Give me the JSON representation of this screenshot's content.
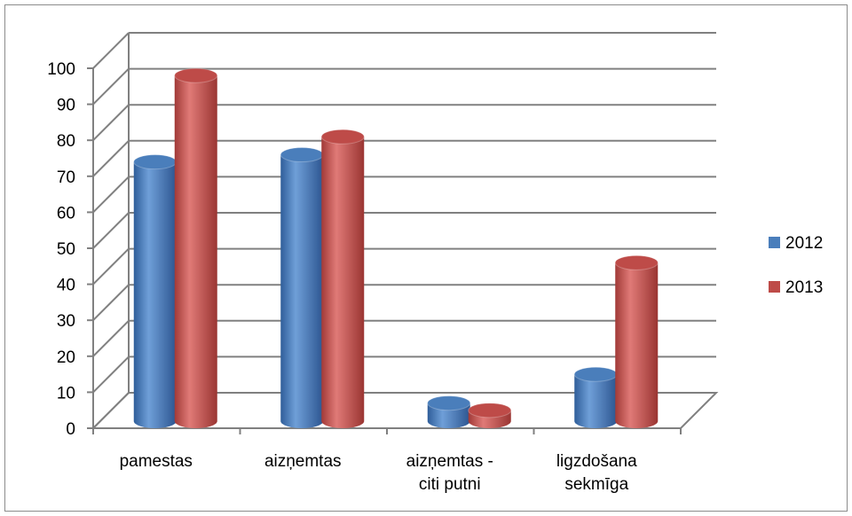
{
  "chart_data": {
    "type": "bar",
    "style": "3d-cylinder",
    "categories": [
      [
        "pamestas"
      ],
      [
        "aizņemtas"
      ],
      [
        "aizņemtas -",
        "citi putni"
      ],
      [
        "ligzdošana",
        "sekmīga"
      ]
    ],
    "series": [
      {
        "name": "2012",
        "values": [
          72,
          74,
          5,
          13
        ],
        "color": "#4a7ebb"
      },
      {
        "name": "2013",
        "values": [
          96,
          79,
          3,
          44
        ],
        "color": "#be4b48"
      }
    ],
    "y_ticks": [
      "0",
      "10",
      "20",
      "30",
      "40",
      "50",
      "60",
      "70",
      "80",
      "90",
      "100"
    ],
    "ylim": [
      0,
      100
    ],
    "grid": true,
    "legend_position": "right",
    "title": "",
    "xlabel": "",
    "ylabel": ""
  }
}
